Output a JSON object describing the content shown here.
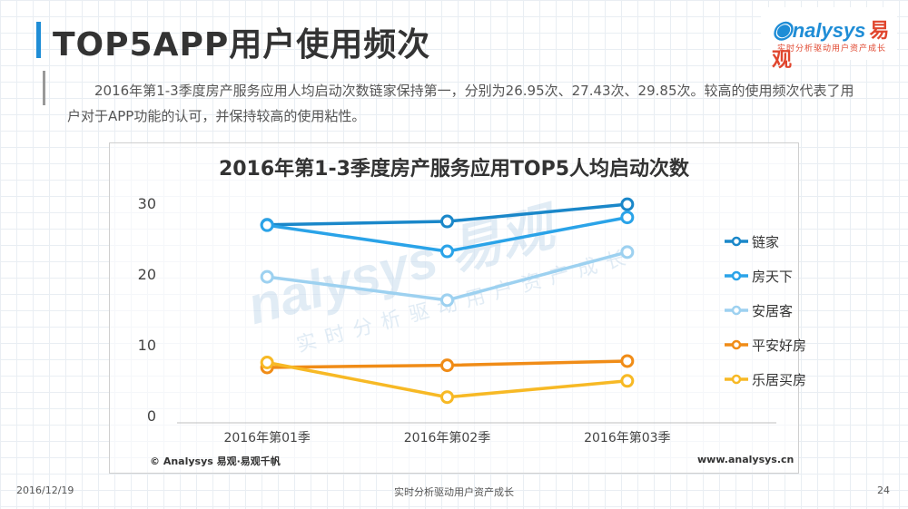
{
  "page": {
    "title": "TOP5APP用户使用频次",
    "description": "2016年第1-3季度房产服务应用人均启动次数链家保持第一，分别为26.95次、27.43次、29.85次。较高的使用频次代表了用户对于APP功能的认可，并保持较高的使用粘性。",
    "date": "2016/12/19",
    "slogan": "实时分析驱动用户资产成长",
    "page_number": "24"
  },
  "logo": {
    "brand_en": "nalysys",
    "brand_cn": "易观",
    "tagline": "实时分析驱动用户资产成长"
  },
  "watermark": {
    "brand": "nalysys 易观",
    "tagline": "实时分析驱动用户资产成长"
  },
  "source": {
    "left": "© Analysys 易观·易观千帆",
    "right": "www.analysys.cn"
  },
  "chart_data": {
    "type": "line",
    "title": "2016年第1-3季度房产服务应用TOP5人均启动次数",
    "categories": [
      "2016年第01季",
      "2016年第02季",
      "2016年第03季"
    ],
    "series": [
      {
        "name": "链家",
        "values": [
          26.95,
          27.43,
          29.85
        ],
        "color": "#1a87c9"
      },
      {
        "name": "房天下",
        "values": [
          26.9,
          23.2,
          28.0
        ],
        "color": "#2aa3e8"
      },
      {
        "name": "安居客",
        "values": [
          19.6,
          16.3,
          23.1
        ],
        "color": "#9dd1f0"
      },
      {
        "name": "平安好房",
        "values": [
          6.8,
          7.1,
          7.7
        ],
        "color": "#f08c17"
      },
      {
        "name": "乐居买房",
        "values": [
          7.5,
          2.6,
          4.9
        ],
        "color": "#f7b925"
      }
    ],
    "ylim": [
      0,
      30
    ],
    "yticks": [
      0,
      10,
      20,
      30
    ],
    "grid": false,
    "legend_position": "right"
  }
}
